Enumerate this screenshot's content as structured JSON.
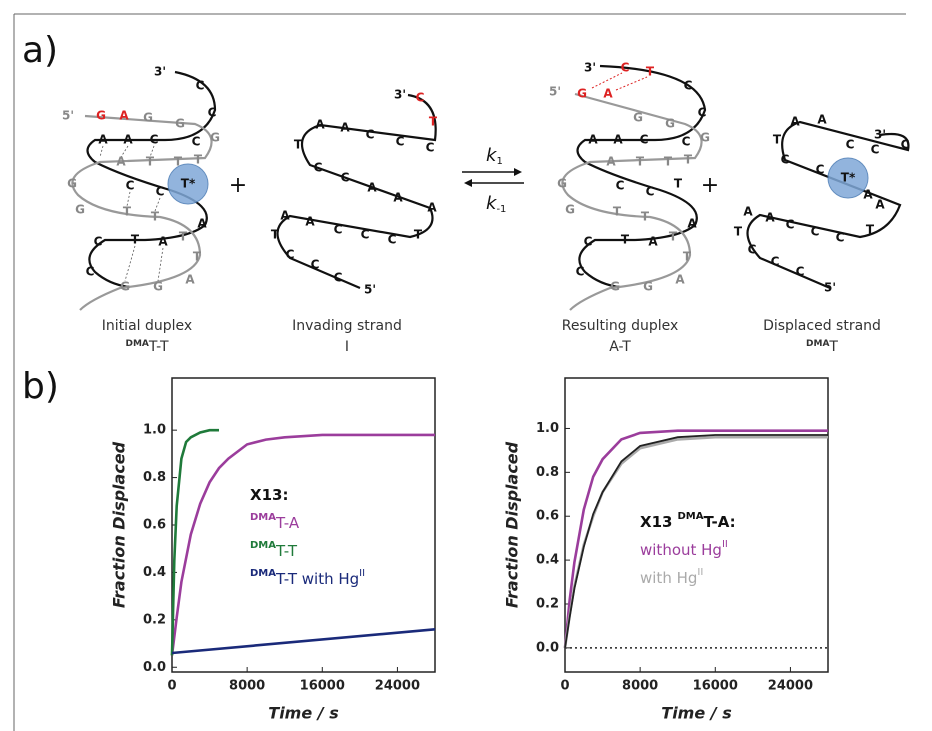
{
  "panel_a": {
    "label": "a)",
    "k_forward": {
      "symbol": "k",
      "sub": "1"
    },
    "k_reverse": {
      "symbol": "k",
      "sub": "-1"
    },
    "structures": [
      {
        "caption": "Initial duplex",
        "sub_sup": "DMA",
        "sub": "T-T",
        "letters": [
          "3'",
          "C",
          "5'",
          "G",
          "A",
          "G",
          "G",
          "C",
          "C",
          "G",
          "A",
          "A",
          "C",
          "T",
          "A",
          "T",
          "T",
          "G",
          "C",
          "C",
          "T*",
          "G",
          "T",
          "T",
          "A",
          "T",
          "T",
          "A",
          "C",
          "T",
          "C",
          "G",
          "G",
          "A"
        ]
      },
      {
        "caption": "Invading strand",
        "sub": "I",
        "letters": [
          "3'",
          "C",
          "T",
          "C",
          "C",
          "C",
          "A",
          "A",
          "T",
          "C",
          "C",
          "A",
          "A",
          "A",
          "T",
          "C",
          "C",
          "C",
          "A",
          "A",
          "T",
          "C",
          "C",
          "C",
          "5'"
        ]
      },
      {
        "caption": "Resulting duplex",
        "sub": "A-T",
        "letters": [
          "3'",
          "C",
          "T",
          "C",
          "5'",
          "G",
          "A",
          "G",
          "G",
          "C",
          "C",
          "G",
          "A",
          "A",
          "C",
          "T",
          "A",
          "T",
          "T",
          "G",
          "C",
          "C",
          "T",
          "G",
          "T",
          "T",
          "A",
          "T",
          "T",
          "A",
          "C",
          "T",
          "C",
          "G",
          "G",
          "A"
        ]
      },
      {
        "caption": "Displaced strand",
        "sub_sup": "DMA",
        "sub": "T",
        "letters": [
          "3'",
          "C",
          "C",
          "C",
          "A",
          "A",
          "T",
          "C",
          "C",
          "T*",
          "A",
          "A",
          "T",
          "C",
          "C",
          "C",
          "A",
          "A",
          "T",
          "C",
          "C",
          "C",
          "5'"
        ]
      }
    ]
  },
  "panel_b": {
    "label": "b)"
  },
  "chart_data": [
    {
      "type": "line",
      "xlabel": "Time / s",
      "ylabel": "Fraction Displaced",
      "xlim": [
        0,
        28000
      ],
      "ylim": [
        -0.02,
        1.22
      ],
      "xticks": [
        0,
        8000,
        16000,
        24000
      ],
      "yticks": [
        {
          "value": 0,
          "label": "0.0"
        },
        {
          "value": 0.2,
          "label": "0.2"
        },
        {
          "value": 0.4,
          "label": "0.4"
        },
        {
          "value": 0.6,
          "label": "0.6"
        },
        {
          "value": 0.8,
          "label": "0.8"
        },
        {
          "value": 1,
          "label": "1.0"
        }
      ],
      "legend_title": "X13:",
      "series": [
        {
          "name_sup": "DMA",
          "name": "T-A",
          "color": "#9b3d9c",
          "x": [
            0,
            500,
            1000,
            2000,
            3000,
            4000,
            5000,
            6000,
            8000,
            10000,
            12000,
            16000,
            20000,
            24000,
            28000
          ],
          "values": [
            0.05,
            0.21,
            0.36,
            0.56,
            0.69,
            0.78,
            0.84,
            0.88,
            0.94,
            0.96,
            0.97,
            0.98,
            0.98,
            0.98,
            0.98
          ]
        },
        {
          "name_sup": "DMA",
          "name": "T-T",
          "color": "#1f7a3a",
          "x": [
            0,
            250,
            500,
            1000,
            1500,
            2000,
            3000,
            4000,
            5000
          ],
          "values": [
            0.05,
            0.45,
            0.68,
            0.88,
            0.95,
            0.97,
            0.99,
            1,
            1
          ]
        },
        {
          "name_sup": "DMA",
          "name": "T-T with Hg",
          "name_sup_after": "II",
          "color": "#1a2a7a",
          "x": [
            0,
            28000
          ],
          "values": [
            0.06,
            0.16
          ]
        }
      ]
    },
    {
      "type": "line",
      "xlabel": "Time / s",
      "ylabel": "Fraction Displaced",
      "xlim": [
        0,
        28000
      ],
      "ylim": [
        -0.11,
        1.23
      ],
      "xticks": [
        0,
        8000,
        16000,
        24000
      ],
      "yticks": [
        {
          "value": 0,
          "label": "0.0"
        },
        {
          "value": 0.2,
          "label": "0.2"
        },
        {
          "value": 0.4,
          "label": "0.4"
        },
        {
          "value": 0.6,
          "label": "0.6"
        },
        {
          "value": 0.8,
          "label": "0.8"
        },
        {
          "value": 1,
          "label": "1.0"
        }
      ],
      "zero_line": true,
      "legend_title": "X13",
      "legend_title_sup": "DMA",
      "legend_title_rest": "T-A:",
      "series": [
        {
          "name": "without Hg",
          "name_sup_after": "II",
          "color": "#9b3d9c",
          "x": [
            0,
            500,
            1000,
            2000,
            3000,
            4000,
            6000,
            8000,
            12000,
            16000,
            20000,
            24000,
            28000
          ],
          "values": [
            0,
            0.22,
            0.39,
            0.63,
            0.78,
            0.86,
            0.95,
            0.98,
            0.99,
            0.99,
            0.99,
            0.99,
            0.99
          ]
        },
        {
          "name": "with Hg",
          "name_sup_after": "II",
          "color": "#aaaaaa",
          "x": [
            0,
            500,
            1000,
            2000,
            3000,
            4000,
            6000,
            8000,
            12000,
            16000,
            20000,
            24000,
            28000
          ],
          "values": [
            0,
            0.15,
            0.28,
            0.47,
            0.6,
            0.71,
            0.84,
            0.91,
            0.95,
            0.96,
            0.96,
            0.96,
            0.96
          ]
        },
        {
          "color": "#222222",
          "x": [
            0,
            500,
            1000,
            2000,
            3000,
            4000,
            6000,
            8000,
            12000,
            16000,
            20000,
            24000,
            28000
          ],
          "values": [
            0,
            0.14,
            0.27,
            0.46,
            0.61,
            0.71,
            0.85,
            0.92,
            0.96,
            0.97,
            0.97,
            0.97,
            0.97
          ]
        }
      ]
    }
  ]
}
